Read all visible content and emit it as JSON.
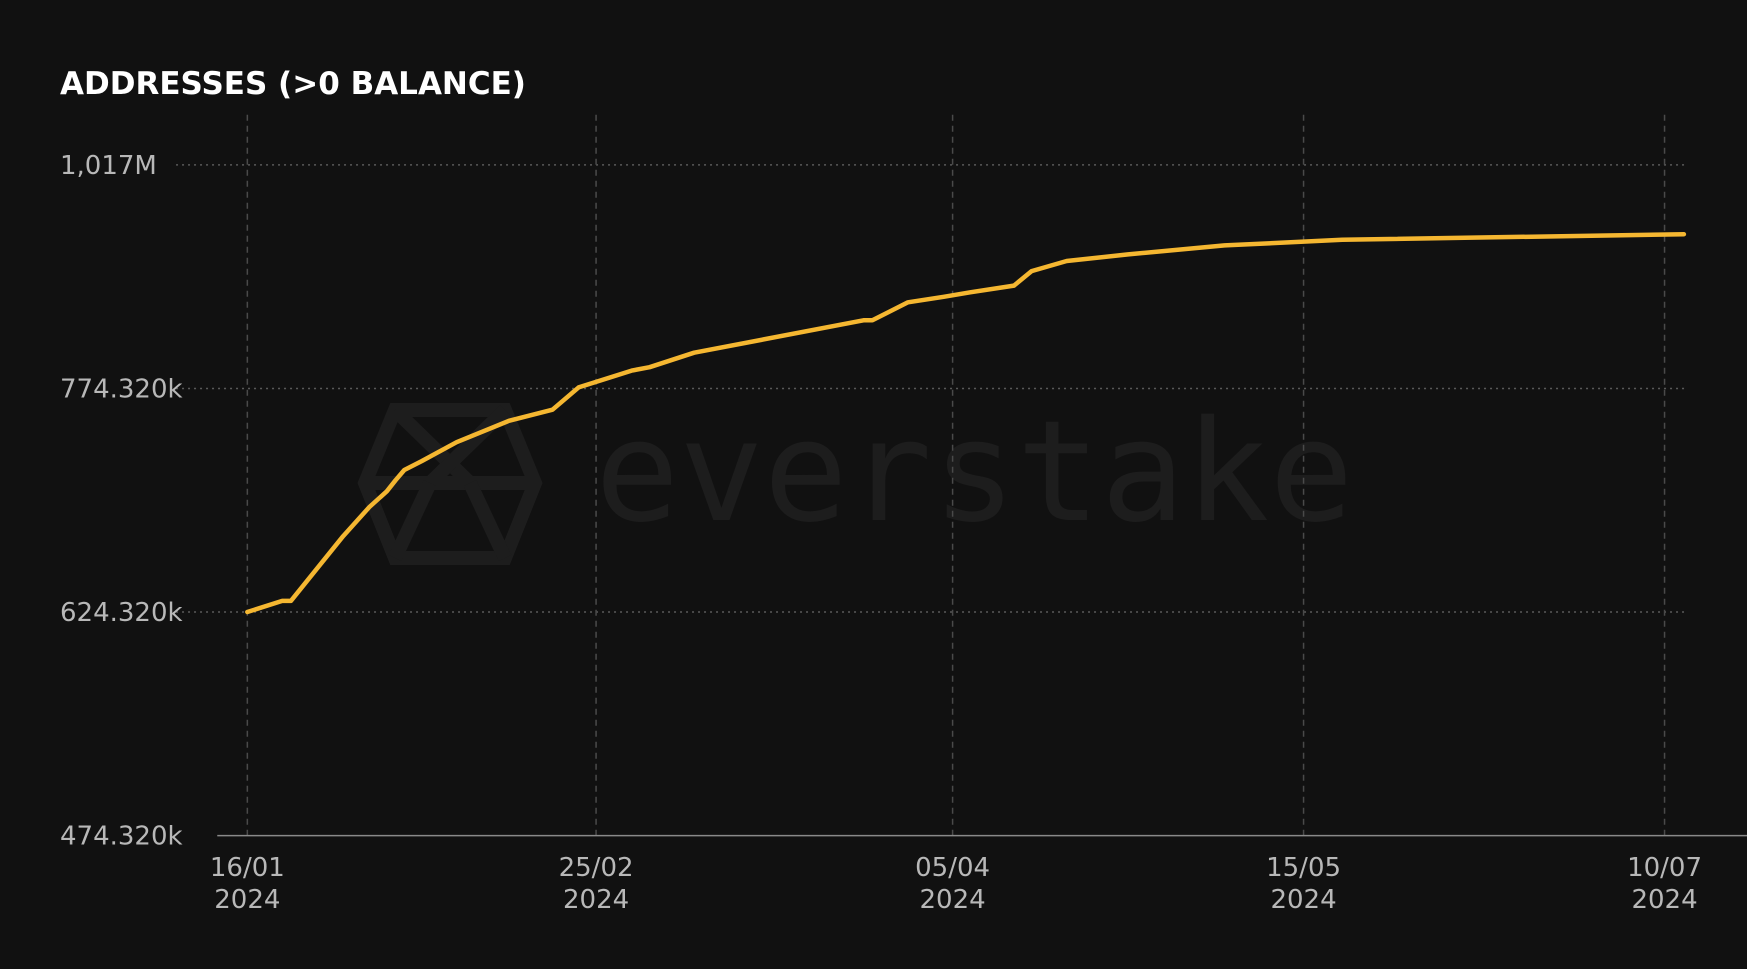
{
  "chart_data": {
    "type": "line",
    "title": "ADDRESSES (>0 BALANCE)",
    "watermark": "everstake",
    "x": [
      "2024-01-16",
      "2024-01-20",
      "2024-01-21",
      "2024-01-27",
      "2024-01-30",
      "2024-02-01",
      "2024-02-02",
      "2024-02-03",
      "2024-02-05",
      "2024-02-09",
      "2024-02-15",
      "2024-02-20",
      "2024-02-23",
      "2024-02-29",
      "2024-03-02",
      "2024-03-07",
      "2024-03-26",
      "2024-03-27",
      "2024-03-31",
      "2024-04-04",
      "2024-04-07",
      "2024-04-12",
      "2024-04-14",
      "2024-04-18",
      "2024-04-25",
      "2024-05-06",
      "2024-05-21",
      "2024-07-13"
    ],
    "series": [
      {
        "name": "Addresses",
        "color": "#f5b731",
        "values": [
          624320,
          631800,
          631800,
          675300,
          694800,
          705300,
          712800,
          719600,
          725600,
          738300,
          752600,
          760100,
          775500,
          793700,
          797400,
          813200,
          848300,
          848300,
          867800,
          873800,
          878700,
          886000,
          901700,
          912700,
          919900,
          929600,
          935700,
          941800
        ]
      }
    ],
    "ylim": [
      474320,
      1017000
    ],
    "yticks": [
      {
        "value": 474320,
        "label": "474.320k"
      },
      {
        "value": 624320,
        "label": "624.320k"
      },
      {
        "value": 774320,
        "label": "774.320k"
      },
      {
        "value": 1017000,
        "label": "1,017M"
      }
    ],
    "xticks": [
      {
        "value": "2024-01-16",
        "label": [
          "16/01",
          "2024"
        ]
      },
      {
        "value": "2024-02-25",
        "label": [
          "25/02",
          "2024"
        ]
      },
      {
        "value": "2024-04-05",
        "label": [
          "05/04",
          "2024"
        ]
      },
      {
        "value": "2024-05-15",
        "label": [
          "15/05",
          "2024"
        ]
      },
      {
        "value": "2024-07-10",
        "label": [
          "10/07",
          "2024"
        ]
      }
    ],
    "grid": true
  }
}
